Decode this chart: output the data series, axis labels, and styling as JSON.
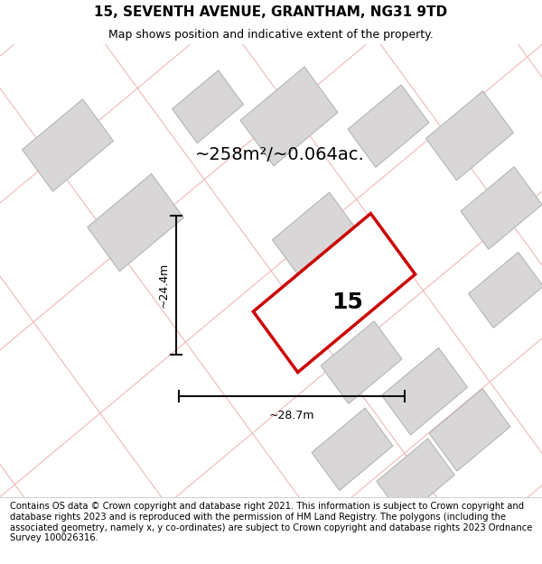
{
  "title": "15, SEVENTH AVENUE, GRANTHAM, NG31 9TD",
  "subtitle": "Map shows position and indicative extent of the property.",
  "footer": "Contains OS data © Crown copyright and database right 2021. This information is subject to Crown copyright and database rights 2023 and is reproduced with the permission of HM Land Registry. The polygons (including the associated geometry, namely x, y co-ordinates) are subject to Crown copyright and database rights 2023 Ordnance Survey 100026316.",
  "area_label": "~258m²/~0.064ac.",
  "width_label": "~28.7m",
  "height_label": "~24.4m",
  "property_number": "15",
  "map_bg": "#f2f0f0",
  "building_fill": "#d8d6d6",
  "building_edge": "#b0aeae",
  "lot_outline_color": "#f0b8b8",
  "highlight_color": "#cc0000",
  "highlight_fill": "#ffffff",
  "dim_line_color": "#111111",
  "title_fontsize": 11,
  "subtitle_fontsize": 9,
  "footer_fontsize": 7.2
}
